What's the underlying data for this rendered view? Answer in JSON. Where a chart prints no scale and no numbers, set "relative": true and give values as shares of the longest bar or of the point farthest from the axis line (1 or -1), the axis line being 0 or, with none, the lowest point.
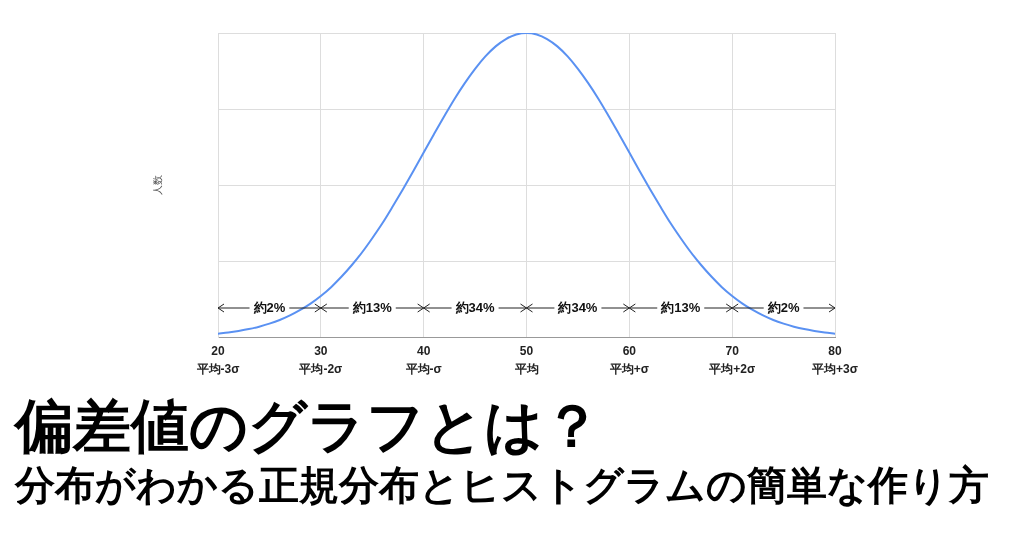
{
  "chart_data": {
    "type": "line",
    "title": "偏差値のグラフとは？",
    "subtitle": "分布がわかる正規分布とヒストグラムの簡単な作り方",
    "ylabel": "人数",
    "relative": true,
    "x": [
      20,
      21,
      22,
      23,
      24,
      25,
      26,
      27,
      28,
      29,
      30,
      31,
      32,
      33,
      34,
      35,
      36,
      37,
      38,
      39,
      40,
      41,
      42,
      43,
      44,
      45,
      46,
      47,
      48,
      49,
      50,
      51,
      52,
      53,
      54,
      55,
      56,
      57,
      58,
      59,
      60,
      61,
      62,
      63,
      64,
      65,
      66,
      67,
      68,
      69,
      70,
      71,
      72,
      73,
      74,
      75,
      76,
      77,
      78,
      79,
      80
    ],
    "values": [
      0.011,
      0.015,
      0.02,
      0.026,
      0.034,
      0.044,
      0.056,
      0.071,
      0.089,
      0.11,
      0.135,
      0.164,
      0.198,
      0.236,
      0.278,
      0.325,
      0.375,
      0.43,
      0.487,
      0.546,
      0.607,
      0.667,
      0.726,
      0.783,
      0.835,
      0.882,
      0.923,
      0.956,
      0.98,
      0.995,
      1,
      0.995,
      0.98,
      0.956,
      0.923,
      0.882,
      0.835,
      0.783,
      0.726,
      0.667,
      0.607,
      0.546,
      0.487,
      0.43,
      0.375,
      0.325,
      0.278,
      0.236,
      0.198,
      0.164,
      0.135,
      0.11,
      0.089,
      0.071,
      0.056,
      0.044,
      0.034,
      0.026,
      0.02,
      0.015,
      0.011
    ],
    "color": "#5a91f2",
    "xlim": [
      20,
      80
    ],
    "xticks": [
      {
        "value": 20,
        "label": "20\n平均-3σ"
      },
      {
        "value": 30,
        "label": "30\n平均-2σ"
      },
      {
        "value": 40,
        "label": "40\n平均-σ"
      },
      {
        "value": 50,
        "label": "50\n平均"
      },
      {
        "value": 60,
        "label": "60\n平均+σ"
      },
      {
        "value": 70,
        "label": "70\n平均+2σ"
      },
      {
        "value": 80,
        "label": "80\n平均+3σ"
      }
    ],
    "tick_labels": "x",
    "grid": true,
    "annotations": [
      "約2%",
      "約13%",
      "約34%",
      "約34%",
      "約13%",
      "約2%"
    ]
  }
}
